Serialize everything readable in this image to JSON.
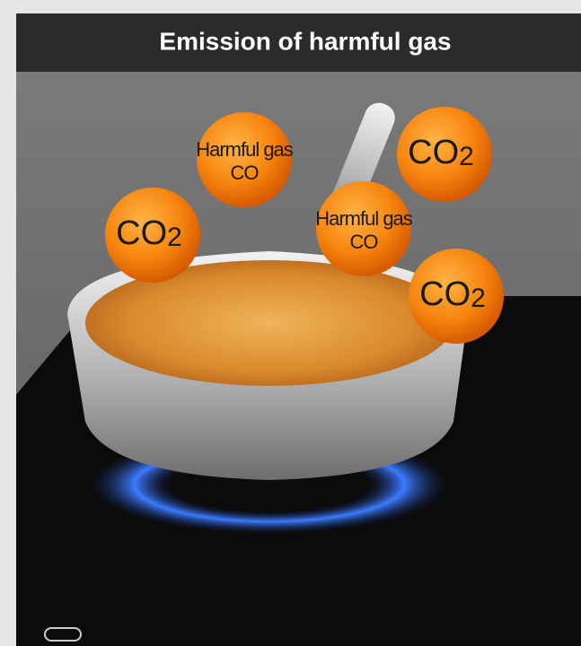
{
  "header": {
    "title": "Emission of harmful gas"
  },
  "bubbles": [
    {
      "lines": [
        "Harmful gas",
        "CO"
      ]
    },
    {
      "main": "CO",
      "sub": "2"
    },
    {
      "main": "CO",
      "sub": "2"
    },
    {
      "lines": [
        "Harmful gas",
        "CO"
      ]
    },
    {
      "main": "CO",
      "sub": "2"
    }
  ]
}
